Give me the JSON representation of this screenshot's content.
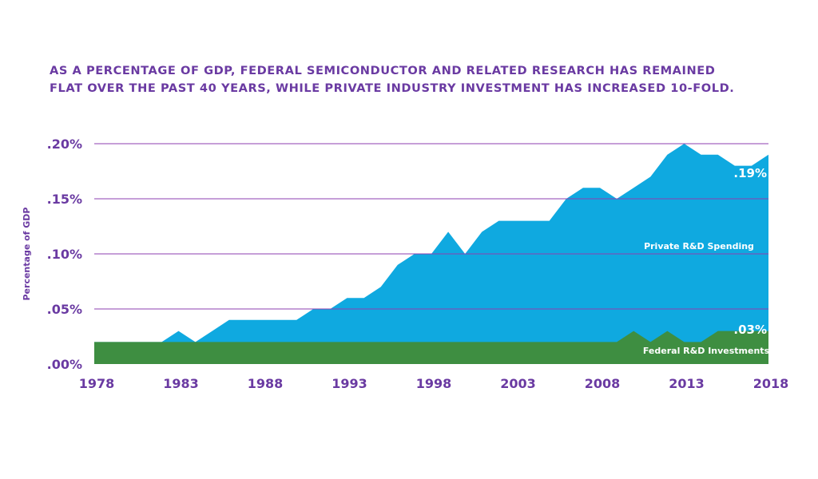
{
  "chart_data": {
    "type": "area",
    "title_lines": [
      "AS A PERCENTAGE OF GDP, FEDERAL SEMICONDUCTOR AND RELATED RESEARCH HAS REMAINED",
      "FLAT OVER THE PAST 40 YEARS, WHILE PRIVATE INDUSTRY INVESTMENT HAS INCREASED 10-FOLD."
    ],
    "ylabel": "Percentage of GDP",
    "xlim": [
      1978,
      2018
    ],
    "ylim": [
      0,
      0.2
    ],
    "x_ticks": [
      "1978",
      "1983",
      "1988",
      "1993",
      "1998",
      "2003",
      "2008",
      "2013",
      "2018"
    ],
    "x_tick_values": [
      1978,
      1983,
      1988,
      1993,
      1998,
      2003,
      2008,
      2013,
      2018
    ],
    "y_ticks": [
      ".00%",
      ".05%",
      ".10%",
      ".15%",
      ".20%"
    ],
    "y_tick_values": [
      0,
      0.05,
      0.1,
      0.15,
      0.2
    ],
    "grid": true,
    "x": [
      1978,
      1979,
      1980,
      1981,
      1982,
      1983,
      1984,
      1985,
      1986,
      1987,
      1988,
      1989,
      1990,
      1991,
      1992,
      1993,
      1994,
      1995,
      1996,
      1997,
      1998,
      1999,
      2000,
      2001,
      2002,
      2003,
      2004,
      2005,
      2006,
      2007,
      2008,
      2009,
      2010,
      2011,
      2012,
      2013,
      2014,
      2015,
      2016,
      2017,
      2018
    ],
    "series": [
      {
        "name": "Private R&D Spending",
        "color": "#0fa9e0",
        "values": [
          0.02,
          0.02,
          0.02,
          0.02,
          0.02,
          0.03,
          0.02,
          0.03,
          0.04,
          0.04,
          0.04,
          0.04,
          0.04,
          0.05,
          0.05,
          0.06,
          0.06,
          0.07,
          0.09,
          0.1,
          0.1,
          0.12,
          0.1,
          0.12,
          0.13,
          0.13,
          0.13,
          0.13,
          0.15,
          0.16,
          0.16,
          0.15,
          0.16,
          0.17,
          0.19,
          0.2,
          0.19,
          0.19,
          0.18,
          0.18,
          0.19
        ]
      },
      {
        "name": "Federal R&D Investments",
        "color": "#3e8e41",
        "values": [
          0.02,
          0.02,
          0.02,
          0.02,
          0.02,
          0.02,
          0.02,
          0.02,
          0.02,
          0.02,
          0.02,
          0.02,
          0.02,
          0.02,
          0.02,
          0.02,
          0.02,
          0.02,
          0.02,
          0.02,
          0.02,
          0.02,
          0.02,
          0.02,
          0.02,
          0.02,
          0.02,
          0.02,
          0.02,
          0.02,
          0.02,
          0.02,
          0.03,
          0.02,
          0.03,
          0.02,
          0.02,
          0.03,
          0.03,
          0.03,
          0.03
        ]
      }
    ],
    "end_labels": [
      {
        "series": "Private R&D Spending",
        "text": ".19%"
      },
      {
        "series": "Federal R&D Investments",
        "text": ".03%"
      }
    ],
    "gridline_color": "#8e3fb0",
    "text_color": "#6a3aa2"
  }
}
